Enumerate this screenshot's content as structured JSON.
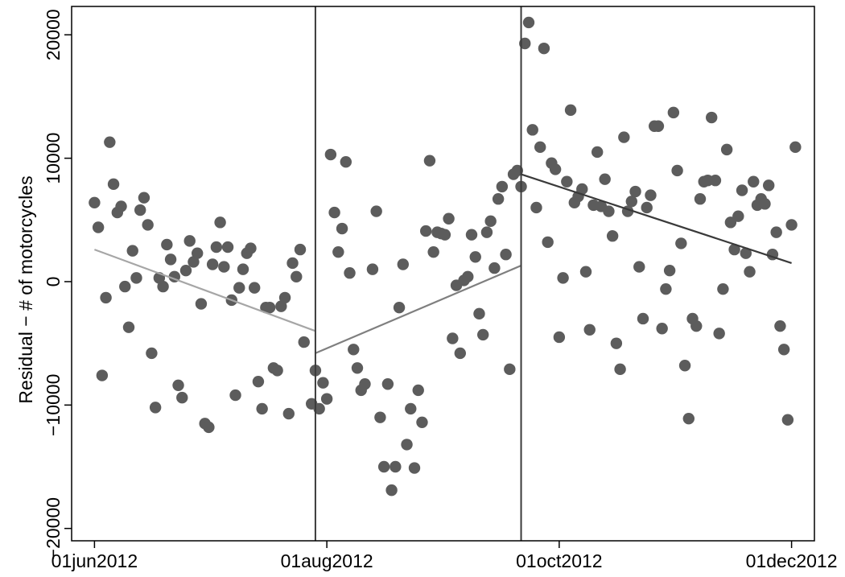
{
  "chart_data": {
    "type": "scatter",
    "title": "",
    "xlabel": "",
    "ylabel": "Residual − # of motorcycles",
    "xlim": [
      "2012-05-26",
      "2012-12-07"
    ],
    "ylim": [
      -21000,
      22300
    ],
    "x_ticks": [
      {
        "date": "2012-06-01",
        "label": "01jun2012"
      },
      {
        "date": "2012-08-01",
        "label": "01aug2012"
      },
      {
        "date": "2012-10-01",
        "label": "01oct2012"
      },
      {
        "date": "2012-12-01",
        "label": "01dec2012"
      }
    ],
    "y_ticks": [
      {
        "value": -20000,
        "label": "−20000"
      },
      {
        "value": -10000,
        "label": "−10000"
      },
      {
        "value": 0,
        "label": "0"
      },
      {
        "value": 10000,
        "label": "10000"
      },
      {
        "value": 20000,
        "label": "20000"
      }
    ],
    "grid": false,
    "vlines": [
      "2012-07-29",
      "2012-09-21"
    ],
    "fit_lines": [
      {
        "segment": 1,
        "color": "#a6a6a6",
        "points": [
          [
            "2012-06-01",
            2600
          ],
          [
            "2012-07-29",
            -4000
          ]
        ]
      },
      {
        "segment": 2,
        "color": "#7f7f7f",
        "points": [
          [
            "2012-07-29",
            -5800
          ],
          [
            "2012-09-21",
            1300
          ]
        ]
      },
      {
        "segment": 3,
        "color": "#3a3a3a",
        "points": [
          [
            "2012-09-21",
            8700
          ],
          [
            "2012-12-01",
            1500
          ]
        ]
      }
    ],
    "marker_color": "#5c5c5c",
    "points": [
      [
        "2012-06-01",
        6400
      ],
      [
        "2012-06-02",
        4400
      ],
      [
        "2012-06-03",
        -7600
      ],
      [
        "2012-06-04",
        -1300
      ],
      [
        "2012-06-05",
        11300
      ],
      [
        "2012-06-06",
        7900
      ],
      [
        "2012-06-07",
        5600
      ],
      [
        "2012-06-08",
        6100
      ],
      [
        "2012-06-09",
        -400
      ],
      [
        "2012-06-10",
        -3700
      ],
      [
        "2012-06-11",
        2500
      ],
      [
        "2012-06-12",
        300
      ],
      [
        "2012-06-13",
        5800
      ],
      [
        "2012-06-14",
        6800
      ],
      [
        "2012-06-15",
        4600
      ],
      [
        "2012-06-16",
        -5800
      ],
      [
        "2012-06-17",
        -10200
      ],
      [
        "2012-06-18",
        300
      ],
      [
        "2012-06-19",
        -400
      ],
      [
        "2012-06-20",
        3000
      ],
      [
        "2012-06-21",
        1800
      ],
      [
        "2012-06-22",
        400
      ],
      [
        "2012-06-23",
        -8400
      ],
      [
        "2012-06-24",
        -9400
      ],
      [
        "2012-06-25",
        900
      ],
      [
        "2012-06-26",
        3300
      ],
      [
        "2012-06-27",
        1600
      ],
      [
        "2012-06-28",
        2300
      ],
      [
        "2012-06-29",
        -1800
      ],
      [
        "2012-06-30",
        -11500
      ],
      [
        "2012-07-01",
        -11800
      ],
      [
        "2012-07-02",
        1400
      ],
      [
        "2012-07-03",
        2800
      ],
      [
        "2012-07-04",
        4800
      ],
      [
        "2012-07-05",
        1200
      ],
      [
        "2012-07-06",
        2800
      ],
      [
        "2012-07-07",
        -1500
      ],
      [
        "2012-07-08",
        -9200
      ],
      [
        "2012-07-09",
        -500
      ],
      [
        "2012-07-10",
        1000
      ],
      [
        "2012-07-11",
        2300
      ],
      [
        "2012-07-12",
        2700
      ],
      [
        "2012-07-13",
        -500
      ],
      [
        "2012-07-14",
        -8100
      ],
      [
        "2012-07-15",
        -10300
      ],
      [
        "2012-07-16",
        -2100
      ],
      [
        "2012-07-17",
        -2100
      ],
      [
        "2012-07-18",
        -7000
      ],
      [
        "2012-07-19",
        -7200
      ],
      [
        "2012-07-20",
        -2000
      ],
      [
        "2012-07-21",
        -1300
      ],
      [
        "2012-07-22",
        -10700
      ],
      [
        "2012-07-23",
        1500
      ],
      [
        "2012-07-24",
        400
      ],
      [
        "2012-07-25",
        2600
      ],
      [
        "2012-07-26",
        -4900
      ],
      [
        "2012-07-28",
        -9900
      ],
      [
        "2012-07-29",
        -7200
      ],
      [
        "2012-07-30",
        -10300
      ],
      [
        "2012-07-31",
        -8200
      ],
      [
        "2012-08-01",
        -9500
      ],
      [
        "2012-08-02",
        10300
      ],
      [
        "2012-08-03",
        5600
      ],
      [
        "2012-08-04",
        2400
      ],
      [
        "2012-08-05",
        4300
      ],
      [
        "2012-08-06",
        9700
      ],
      [
        "2012-08-07",
        700
      ],
      [
        "2012-08-08",
        -5500
      ],
      [
        "2012-08-09",
        -7000
      ],
      [
        "2012-08-10",
        -8800
      ],
      [
        "2012-08-11",
        -8300
      ],
      [
        "2012-08-13",
        1000
      ],
      [
        "2012-08-14",
        5700
      ],
      [
        "2012-08-15",
        -11000
      ],
      [
        "2012-08-16",
        -15000
      ],
      [
        "2012-08-17",
        -8300
      ],
      [
        "2012-08-18",
        -16900
      ],
      [
        "2012-08-19",
        -15000
      ],
      [
        "2012-08-20",
        -2100
      ],
      [
        "2012-08-21",
        1400
      ],
      [
        "2012-08-22",
        -13200
      ],
      [
        "2012-08-23",
        -10300
      ],
      [
        "2012-08-24",
        -15100
      ],
      [
        "2012-08-25",
        -8800
      ],
      [
        "2012-08-26",
        -11400
      ],
      [
        "2012-08-27",
        4100
      ],
      [
        "2012-08-28",
        9800
      ],
      [
        "2012-08-29",
        2400
      ],
      [
        "2012-08-30",
        4000
      ],
      [
        "2012-08-31",
        3900
      ],
      [
        "2012-09-01",
        3800
      ],
      [
        "2012-09-02",
        5100
      ],
      [
        "2012-09-03",
        -4600
      ],
      [
        "2012-09-04",
        -300
      ],
      [
        "2012-09-05",
        -5800
      ],
      [
        "2012-09-06",
        100
      ],
      [
        "2012-09-07",
        400
      ],
      [
        "2012-09-08",
        3800
      ],
      [
        "2012-09-09",
        2000
      ],
      [
        "2012-09-10",
        -2600
      ],
      [
        "2012-09-11",
        -4300
      ],
      [
        "2012-09-12",
        4000
      ],
      [
        "2012-09-13",
        4900
      ],
      [
        "2012-09-14",
        1100
      ],
      [
        "2012-09-15",
        6700
      ],
      [
        "2012-09-16",
        7700
      ],
      [
        "2012-09-17",
        2200
      ],
      [
        "2012-09-18",
        -7100
      ],
      [
        "2012-09-19",
        8700
      ],
      [
        "2012-09-20",
        9000
      ],
      [
        "2012-09-21",
        7700
      ],
      [
        "2012-09-22",
        19300
      ],
      [
        "2012-09-23",
        21000
      ],
      [
        "2012-09-24",
        12300
      ],
      [
        "2012-09-25",
        6000
      ],
      [
        "2012-09-26",
        10900
      ],
      [
        "2012-09-27",
        18900
      ],
      [
        "2012-09-28",
        3200
      ],
      [
        "2012-09-29",
        9600
      ],
      [
        "2012-09-30",
        9100
      ],
      [
        "2012-10-01",
        -4500
      ],
      [
        "2012-10-02",
        300
      ],
      [
        "2012-10-03",
        8100
      ],
      [
        "2012-10-04",
        13900
      ],
      [
        "2012-10-05",
        6400
      ],
      [
        "2012-10-06",
        6900
      ],
      [
        "2012-10-07",
        7500
      ],
      [
        "2012-10-08",
        800
      ],
      [
        "2012-10-09",
        -3900
      ],
      [
        "2012-10-10",
        6200
      ],
      [
        "2012-10-11",
        10500
      ],
      [
        "2012-10-12",
        6100
      ],
      [
        "2012-10-13",
        8300
      ],
      [
        "2012-10-14",
        5700
      ],
      [
        "2012-10-15",
        3700
      ],
      [
        "2012-10-16",
        -5000
      ],
      [
        "2012-10-17",
        -7100
      ],
      [
        "2012-10-18",
        11700
      ],
      [
        "2012-10-19",
        5700
      ],
      [
        "2012-10-20",
        6500
      ],
      [
        "2012-10-21",
        7300
      ],
      [
        "2012-10-22",
        1200
      ],
      [
        "2012-10-23",
        -3000
      ],
      [
        "2012-10-24",
        6000
      ],
      [
        "2012-10-25",
        7000
      ],
      [
        "2012-10-26",
        12600
      ],
      [
        "2012-10-27",
        12600
      ],
      [
        "2012-10-28",
        -3800
      ],
      [
        "2012-10-29",
        -600
      ],
      [
        "2012-10-30",
        900
      ],
      [
        "2012-10-31",
        13700
      ],
      [
        "2012-11-01",
        9000
      ],
      [
        "2012-11-02",
        3100
      ],
      [
        "2012-11-03",
        -6800
      ],
      [
        "2012-11-04",
        -11100
      ],
      [
        "2012-11-05",
        -3000
      ],
      [
        "2012-11-06",
        -3600
      ],
      [
        "2012-11-07",
        6700
      ],
      [
        "2012-11-08",
        8100
      ],
      [
        "2012-11-09",
        8200
      ],
      [
        "2012-11-10",
        13300
      ],
      [
        "2012-11-11",
        8200
      ],
      [
        "2012-11-12",
        -4200
      ],
      [
        "2012-11-13",
        -600
      ],
      [
        "2012-11-14",
        10700
      ],
      [
        "2012-11-15",
        4800
      ],
      [
        "2012-11-16",
        2600
      ],
      [
        "2012-11-17",
        5300
      ],
      [
        "2012-11-18",
        7400
      ],
      [
        "2012-11-19",
        2300
      ],
      [
        "2012-11-20",
        800
      ],
      [
        "2012-11-21",
        8100
      ],
      [
        "2012-11-22",
        6200
      ],
      [
        "2012-11-23",
        6700
      ],
      [
        "2012-11-24",
        6300
      ],
      [
        "2012-11-25",
        7800
      ],
      [
        "2012-11-26",
        2200
      ],
      [
        "2012-11-27",
        4000
      ],
      [
        "2012-11-28",
        -3600
      ],
      [
        "2012-11-29",
        -5500
      ],
      [
        "2012-11-30",
        -11200
      ],
      [
        "2012-12-01",
        4600
      ],
      [
        "2012-12-02",
        10900
      ]
    ]
  }
}
